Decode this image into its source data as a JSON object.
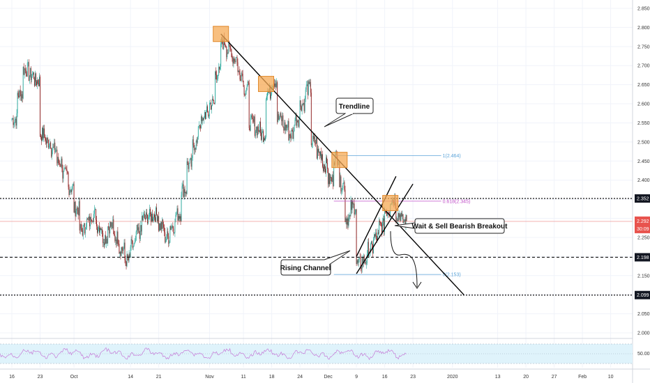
{
  "chart_data": {
    "type": "candlestick",
    "price_axis": {
      "ticks": [
        "2.850",
        "2.800",
        "2.750",
        "2.700",
        "2.650",
        "2.600",
        "2.550",
        "2.500",
        "2.450",
        "2.400",
        "2.350",
        "2.300",
        "2.250",
        "2.200",
        "2.150",
        "2.100",
        "2.050",
        "2.000"
      ],
      "range": [
        1.985,
        2.862
      ]
    },
    "time_axis": {
      "ticks": [
        {
          "label": "16",
          "index": 0
        },
        {
          "label": "23",
          "index": 5
        },
        {
          "label": "Oct",
          "index": 11
        },
        {
          "label": "14",
          "index": 21
        },
        {
          "label": "21",
          "index": 26
        },
        {
          "label": "Nov",
          "index": 35
        },
        {
          "label": "11",
          "index": 41
        },
        {
          "label": "18",
          "index": 46
        },
        {
          "label": "24",
          "index": 51
        },
        {
          "label": "Dec",
          "index": 56
        },
        {
          "label": "9",
          "index": 61
        },
        {
          "label": "16",
          "index": 66
        },
        {
          "label": "23",
          "index": 71
        },
        {
          "label": "2020",
          "index": 78
        },
        {
          "label": "13",
          "index": 86
        },
        {
          "label": "20",
          "index": 91
        },
        {
          "label": "27",
          "index": 96
        },
        {
          "label": "Feb",
          "index": 101
        },
        {
          "label": "10",
          "index": 106
        }
      ]
    },
    "anchors": [
      [
        0,
        2.56
      ],
      [
        2,
        2.69
      ],
      [
        4,
        2.66
      ],
      [
        5,
        2.52
      ],
      [
        7,
        2.48
      ],
      [
        10,
        2.38
      ],
      [
        12,
        2.27
      ],
      [
        14,
        2.31
      ],
      [
        16,
        2.25
      ],
      [
        17,
        2.28
      ],
      [
        20,
        2.19
      ],
      [
        23,
        2.3
      ],
      [
        25,
        2.31
      ],
      [
        27,
        2.25
      ],
      [
        29,
        2.31
      ],
      [
        31,
        2.44
      ],
      [
        33,
        2.55
      ],
      [
        35,
        2.6
      ],
      [
        37,
        2.76
      ],
      [
        39,
        2.72
      ],
      [
        41,
        2.64
      ],
      [
        42,
        2.55
      ],
      [
        44,
        2.52
      ],
      [
        45,
        2.63
      ],
      [
        46,
        2.66
      ],
      [
        47,
        2.56
      ],
      [
        49,
        2.52
      ],
      [
        51,
        2.6
      ],
      [
        52,
        2.64
      ],
      [
        53,
        2.5
      ],
      [
        55,
        2.44
      ],
      [
        56,
        2.4
      ],
      [
        57,
        2.46
      ],
      [
        58,
        2.39
      ],
      [
        59,
        2.3
      ],
      [
        60,
        2.33
      ],
      [
        61,
        2.18
      ],
      [
        62,
        2.19
      ],
      [
        64,
        2.25
      ],
      [
        65,
        2.28
      ],
      [
        66,
        2.32
      ],
      [
        67,
        2.35
      ],
      [
        68,
        2.31
      ],
      [
        69,
        2.292
      ]
    ],
    "price_lines": [
      {
        "value": 2.352,
        "label": "2.352",
        "style": "dotted"
      },
      {
        "value": 2.198,
        "label": "2.198",
        "style": "dashed"
      },
      {
        "value": 2.099,
        "label": "2.099",
        "style": "dotted"
      }
    ],
    "current_price": {
      "value": 2.292,
      "label": "2.292",
      "countdown": "30:09"
    },
    "fib_levels": [
      {
        "value": 2.464,
        "label": "1(2.464)"
      },
      {
        "value": 2.345,
        "label": "0.618(2.345)"
      },
      {
        "value": 2.153,
        "label": "0(2.153)"
      }
    ],
    "trendline": {
      "from": [
        37,
        2.783
      ],
      "to": [
        80,
        2.1
      ]
    },
    "channel": {
      "lower": {
        "from": [
          61,
          2.155
        ],
        "to": [
          71,
          2.39
        ]
      },
      "upper": {
        "from": [
          61,
          2.2
        ],
        "to": [
          68,
          2.41
        ]
      }
    },
    "highlight_boxes": [
      [
        37,
        2.783
      ],
      [
        45,
        2.652
      ],
      [
        58,
        2.453
      ],
      [
        67,
        2.34
      ]
    ],
    "annotations": [
      {
        "text": "Trendline"
      },
      {
        "text": "Rising Channel"
      },
      {
        "text": "Wait & Sell Bearish Breakout"
      }
    ],
    "indicator": {
      "type": "oscillator",
      "ticks": [
        "50.00"
      ]
    }
  },
  "colors": {
    "up": "#26a69a",
    "down": "#8b1a1a",
    "box": "#f5a954",
    "box_stroke": "#e08a2e",
    "fib_blue": "#5aa3d8",
    "fib_pink": "#c050c8",
    "price_red": "#e8534d",
    "osc_line": "#c67ad8",
    "osc_band": "#dff3fb"
  }
}
